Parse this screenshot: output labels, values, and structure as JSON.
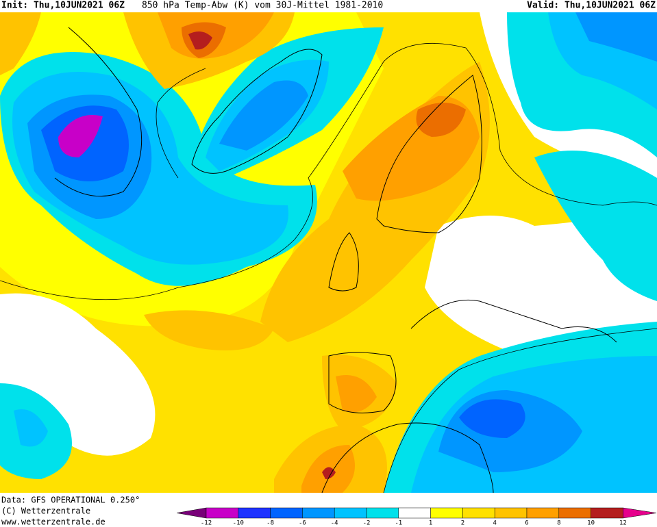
{
  "header": {
    "init": "Init: Thu,10JUN2021 06Z",
    "title": "850 hPa Temp-Abw (K) vom 30J-Mittel 1981-2010",
    "valid": "Valid: Thu,10JUN2021 06Z"
  },
  "footer": {
    "source": "Data: GFS OPERATIONAL 0.250°",
    "copyright": "(C) Wetterzentrale",
    "url": "www.wetterzentrale.de"
  },
  "legend": {
    "labels": [
      -12,
      -10,
      -8,
      -6,
      -4,
      -2,
      -1,
      1,
      2,
      4,
      6,
      8,
      10,
      12
    ],
    "colors": [
      "#c800c8",
      "#1e32ff",
      "#0064ff",
      "#0096ff",
      "#00c3ff",
      "#00e1eb",
      "#ffffff",
      "#ffff00",
      "#ffe100",
      "#ffc300",
      "#ffa000",
      "#eb6e00",
      "#b41e1e"
    ],
    "low_color": "#780078",
    "high_color": "#e6008c"
  }
}
